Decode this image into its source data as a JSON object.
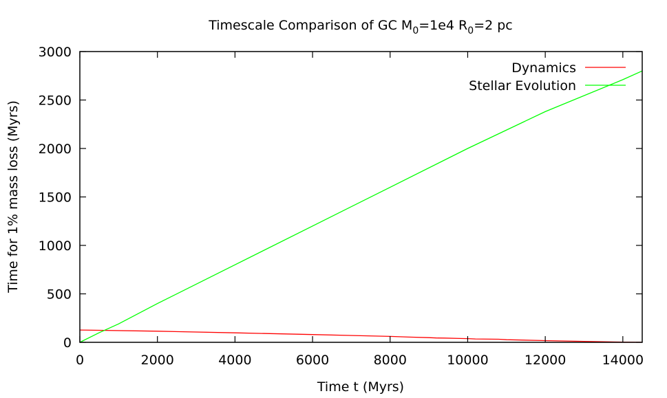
{
  "chart_data": {
    "type": "line",
    "title": {
      "prefix": "Timescale Comparison of GC M",
      "sub1": "0",
      "middle": "=1e4 R",
      "sub2": "0",
      "suffix": "=2 pc"
    },
    "xlabel": "Time t (Myrs)",
    "ylabel": "Time for 1% mass loss (Myrs)",
    "xlim": [
      0,
      14500
    ],
    "ylim": [
      0,
      3000
    ],
    "xticks": [
      0,
      2000,
      4000,
      6000,
      8000,
      10000,
      12000,
      14000
    ],
    "yticks": [
      0,
      500,
      1000,
      1500,
      2000,
      2500,
      3000
    ],
    "grid": false,
    "legend_position": "top-right",
    "series": [
      {
        "name": "Dynamics",
        "color": "#ff0000",
        "x": [
          0,
          2000,
          4000,
          6000,
          8000,
          8500,
          9000,
          9200,
          9400,
          9800,
          10000,
          10200,
          10800,
          11000,
          12000,
          13000,
          13500,
          14000,
          14500
        ],
        "y": [
          127,
          115,
          98,
          80,
          61,
          54,
          48,
          45,
          44,
          40,
          38,
          35,
          32,
          27,
          18,
          10,
          6,
          3,
          1
        ]
      },
      {
        "name": "Stellar Evolution",
        "color": "#00ff00",
        "x": [
          0,
          500,
          1000,
          2000,
          4000,
          6000,
          8000,
          10000,
          12000,
          14000,
          14500
        ],
        "y": [
          0,
          100,
          190,
          400,
          800,
          1200,
          1600,
          2000,
          2380,
          2710,
          2800
        ]
      }
    ]
  }
}
